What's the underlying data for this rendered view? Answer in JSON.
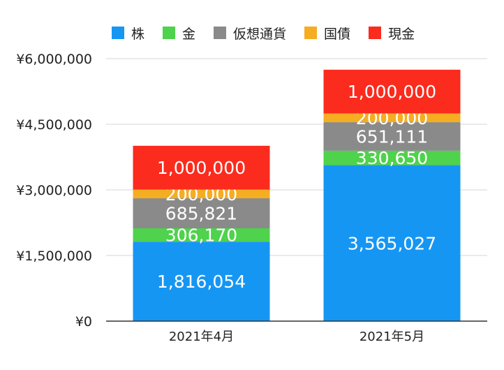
{
  "chart_data": {
    "type": "bar",
    "stacked": true,
    "categories": [
      "2021年4月",
      "2021年5月"
    ],
    "series": [
      {
        "name": "株",
        "color": "#1696f3",
        "values": [
          1816054,
          3565027
        ],
        "labels": [
          "1,816,054",
          "3,565,027"
        ]
      },
      {
        "name": "金",
        "color": "#4fd24c",
        "values": [
          306170,
          330650
        ],
        "labels": [
          "306,170",
          "330,650"
        ]
      },
      {
        "name": "仮想通貨",
        "color": "#8a8a8a",
        "values": [
          685821,
          651111
        ],
        "labels": [
          "685,821",
          "651,111"
        ]
      },
      {
        "name": "国債",
        "color": "#f5ad22",
        "values": [
          200000,
          200000
        ],
        "labels": [
          "200,000",
          "200,000"
        ]
      },
      {
        "name": "現金",
        "color": "#fb2b1e",
        "values": [
          1000000,
          1000000
        ],
        "labels": [
          "1,000,000",
          "1,000,000"
        ]
      }
    ],
    "ylim": [
      0,
      6000000
    ],
    "yticks": [
      {
        "value": 0,
        "label": "¥0"
      },
      {
        "value": 1500000,
        "label": "¥1,500,000"
      },
      {
        "value": 3000000,
        "label": "¥3,000,000"
      },
      {
        "value": 4500000,
        "label": "¥4,500,000"
      },
      {
        "value": 6000000,
        "label": "¥6,000,000"
      }
    ],
    "grid": true,
    "legend_position": "top"
  }
}
